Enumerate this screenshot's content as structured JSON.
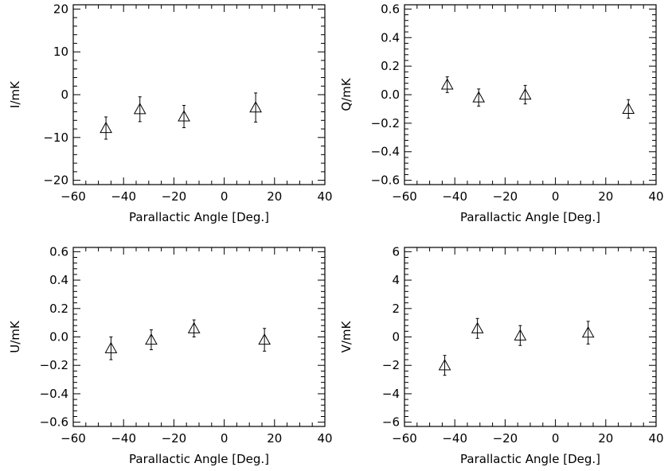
{
  "chart_data": [
    {
      "type": "scatter",
      "id": "I",
      "xlabel": "Parallactic Angle [Deg.]",
      "ylabel": "I/mK",
      "xlim": [
        -60,
        40
      ],
      "ylim": [
        -21,
        21
      ],
      "xticks": [
        -60,
        -40,
        -20,
        0,
        20,
        40
      ],
      "yticks": [
        -20,
        -10,
        0,
        10,
        20
      ],
      "ytick_labels": [
        "−20",
        "−10",
        "0",
        "10",
        "20"
      ],
      "marker": "open-triangle",
      "points": [
        {
          "x": -47,
          "y": -7.8,
          "err": 2.6
        },
        {
          "x": -33.5,
          "y": -3.4,
          "err": 2.9
        },
        {
          "x": -16,
          "y": -5.1,
          "err": 2.6
        },
        {
          "x": 12.5,
          "y": -3.0,
          "err": 3.4
        }
      ]
    },
    {
      "type": "scatter",
      "id": "Q",
      "xlabel": "Parallactic Angle [Deg.]",
      "ylabel": "Q/mK",
      "xlim": [
        -60,
        40
      ],
      "ylim": [
        -0.63,
        0.63
      ],
      "xticks": [
        -60,
        -40,
        -20,
        0,
        20,
        40
      ],
      "yticks": [
        -0.6,
        -0.4,
        -0.2,
        0.0,
        0.2,
        0.4,
        0.6
      ],
      "ytick_labels": [
        "−0.6",
        "−0.4",
        "−0.2",
        "0.0",
        "0.2",
        "0.4",
        "0.6"
      ],
      "marker": "open-triangle",
      "points": [
        {
          "x": -43,
          "y": 0.07,
          "err": 0.055
        },
        {
          "x": -30.5,
          "y": -0.02,
          "err": 0.06
        },
        {
          "x": -12,
          "y": 0.0,
          "err": 0.065
        },
        {
          "x": 29,
          "y": -0.1,
          "err": 0.065
        }
      ]
    },
    {
      "type": "scatter",
      "id": "U",
      "xlabel": "Parallactic Angle [Deg.]",
      "ylabel": "U/mK",
      "xlim": [
        -60,
        40
      ],
      "ylim": [
        -0.63,
        0.63
      ],
      "xticks": [
        -60,
        -40,
        -20,
        0,
        20,
        40
      ],
      "yticks": [
        -0.6,
        -0.4,
        -0.2,
        0.0,
        0.2,
        0.4,
        0.6
      ],
      "ytick_labels": [
        "−0.6",
        "−0.4",
        "−0.2",
        "0.0",
        "0.2",
        "0.4",
        "0.6"
      ],
      "marker": "open-triangle",
      "points": [
        {
          "x": -45,
          "y": -0.08,
          "err": 0.08
        },
        {
          "x": -29,
          "y": -0.02,
          "err": 0.07
        },
        {
          "x": -12,
          "y": 0.06,
          "err": 0.06
        },
        {
          "x": 16,
          "y": -0.02,
          "err": 0.08
        }
      ]
    },
    {
      "type": "scatter",
      "id": "V",
      "xlabel": "Parallactic Angle [Deg.]",
      "ylabel": "V/mK",
      "xlim": [
        -60,
        40
      ],
      "ylim": [
        -6.3,
        6.3
      ],
      "xticks": [
        -60,
        -40,
        -20,
        0,
        20,
        40
      ],
      "yticks": [
        -6,
        -4,
        -2,
        0,
        2,
        4,
        6
      ],
      "ytick_labels": [
        "−6",
        "−4",
        "−2",
        "0",
        "2",
        "4",
        "6"
      ],
      "marker": "open-triangle",
      "points": [
        {
          "x": -44,
          "y": -2.0,
          "err": 0.7
        },
        {
          "x": -31,
          "y": 0.6,
          "err": 0.7
        },
        {
          "x": -14,
          "y": 0.1,
          "err": 0.7
        },
        {
          "x": 13,
          "y": 0.3,
          "err": 0.8
        }
      ]
    }
  ],
  "xtick_labels": [
    "−60",
    "−40",
    "−20",
    "0",
    "20",
    "40"
  ]
}
